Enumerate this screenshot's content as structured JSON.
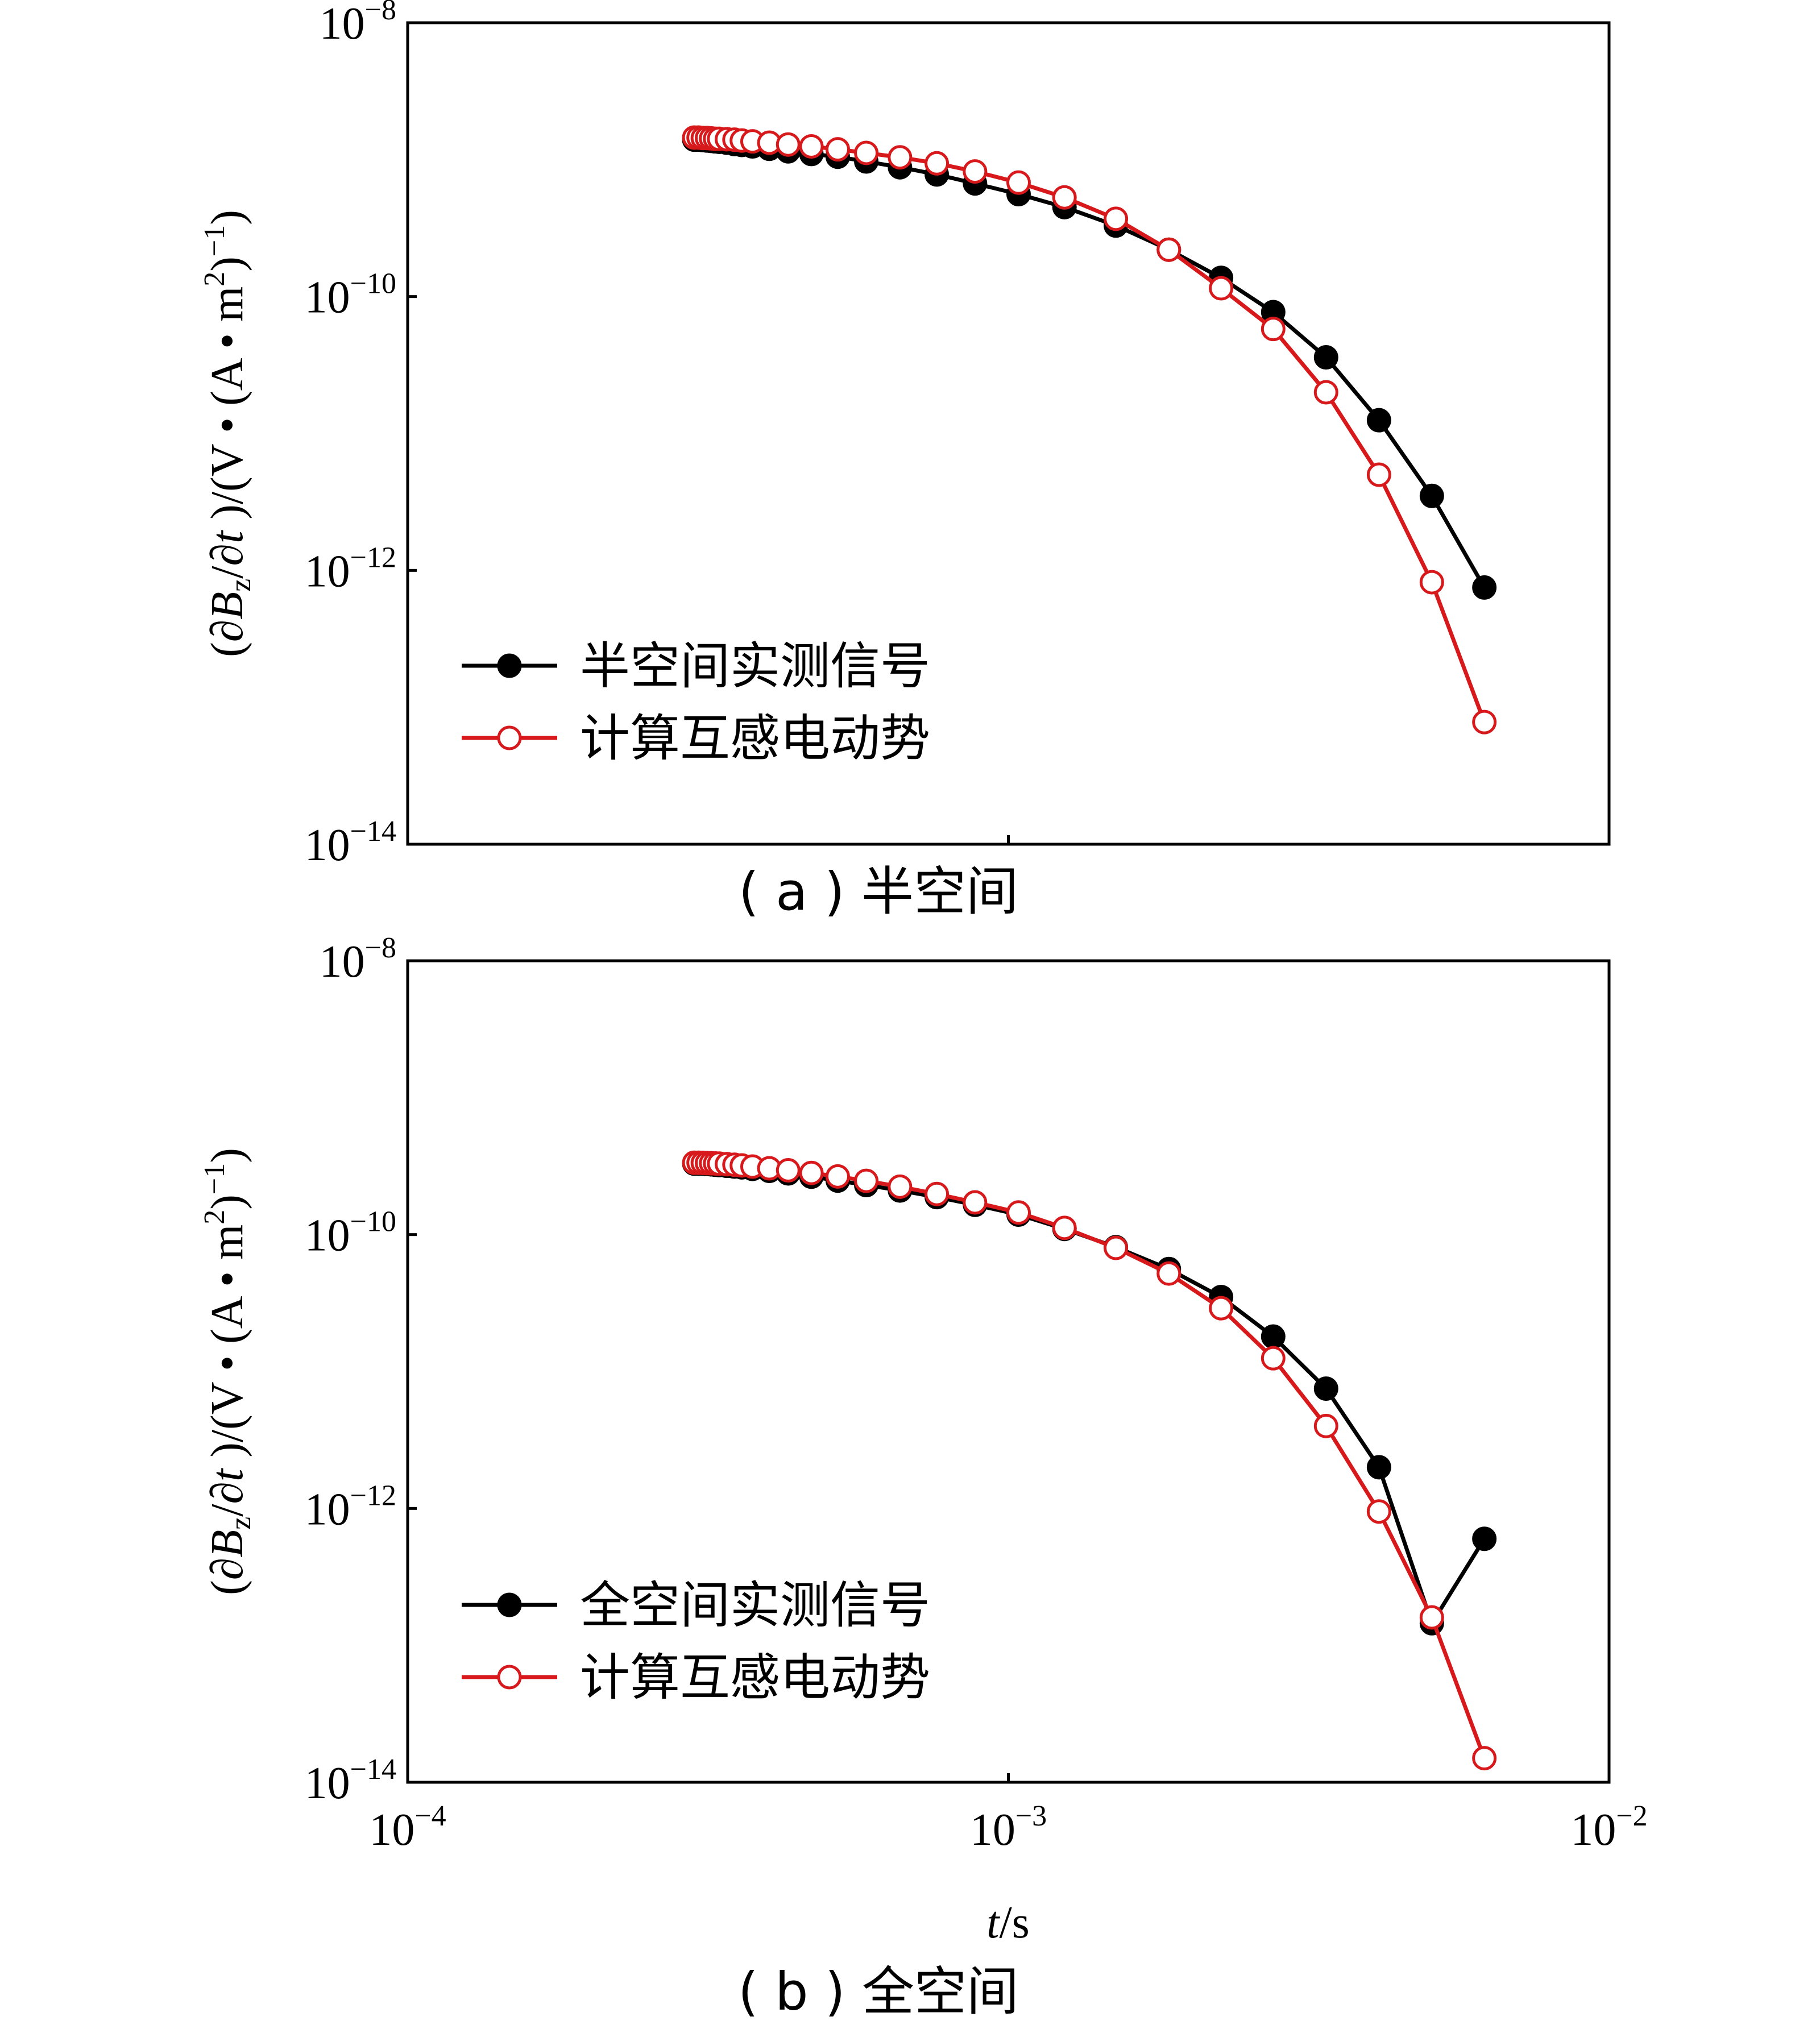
{
  "chart_data": [
    {
      "type": "line",
      "panel": "a",
      "caption": "( a ) 半空间",
      "xscale": "log",
      "yscale": "log",
      "xlim": [
        0.0001,
        0.01
      ],
      "ylim": [
        1e-14,
        1e-08
      ],
      "x_ticks": [
        {
          "base": "10",
          "exp": "−4"
        },
        {
          "base": "10",
          "exp": "−3"
        },
        {
          "base": "10",
          "exp": "−2"
        }
      ],
      "y_ticks": [
        {
          "base": "10",
          "exp": "−8"
        },
        {
          "base": "10",
          "exp": "−10"
        },
        {
          "base": "10",
          "exp": "−12"
        },
        {
          "base": "10",
          "exp": "−14"
        }
      ],
      "ylabel": "(∂Bz/∂t)/(V·(A·m²)⁻¹)",
      "legend_position": "lower-left",
      "series": [
        {
          "name": "半空间实测信号",
          "color": "#000000",
          "marker": "filled-circle",
          "x": [
            0.0003,
            0.000305,
            0.00031,
            0.000315,
            0.00032,
            0.000325,
            0.00033,
            0.00034,
            0.00035,
            0.00036,
            0.000375,
            0.0004,
            0.00043,
            0.00047,
            0.00052,
            0.00058,
            0.00066,
            0.00076,
            0.00088,
            0.00104,
            0.00124,
            0.00151,
            0.00185,
            0.00226,
            0.00276,
            0.00338,
            0.00414,
            0.00507,
            0.0062
          ],
          "y": [
            1.4e-09,
            1.4e-09,
            1.39e-09,
            1.38e-09,
            1.37e-09,
            1.36e-09,
            1.35e-09,
            1.33e-09,
            1.3e-09,
            1.28e-09,
            1.25e-09,
            1.2e-09,
            1.15e-09,
            1.1e-09,
            1.05e-09,
            9.7e-10,
            8.8e-10,
            7.8e-10,
            6.7e-10,
            5.6e-10,
            4.5e-10,
            3.3e-10,
            2.2e-10,
            1.37e-10,
            7.7e-11,
            3.6e-11,
            1.25e-11,
            3.5e-12,
            7.5e-13
          ]
        },
        {
          "name": "计算互感电动势",
          "color": "#d7191c",
          "marker": "open-circle",
          "x": [
            0.0003,
            0.000305,
            0.00031,
            0.000315,
            0.00032,
            0.000325,
            0.00033,
            0.00034,
            0.00035,
            0.00036,
            0.000375,
            0.0004,
            0.00043,
            0.00047,
            0.00052,
            0.00058,
            0.00066,
            0.00076,
            0.00088,
            0.00104,
            0.00124,
            0.00151,
            0.00185,
            0.00226,
            0.00276,
            0.00338,
            0.00414,
            0.00507,
            0.0062
          ],
          "y": [
            1.45e-09,
            1.45e-09,
            1.44e-09,
            1.44e-09,
            1.43e-09,
            1.42e-09,
            1.42e-09,
            1.41e-09,
            1.4e-09,
            1.38e-09,
            1.36e-09,
            1.33e-09,
            1.29e-09,
            1.25e-09,
            1.19e-09,
            1.12e-09,
            1.04e-09,
            9.4e-10,
            8.2e-10,
            6.8e-10,
            5.3e-10,
            3.7e-10,
            2.2e-10,
            1.15e-10,
            5.8e-11,
            2e-11,
            5e-12,
            8.2e-13,
            7.8e-14
          ]
        }
      ]
    },
    {
      "type": "line",
      "panel": "b",
      "caption": "( b ) 全空间",
      "xscale": "log",
      "yscale": "log",
      "xlim": [
        0.0001,
        0.01
      ],
      "ylim": [
        1e-14,
        1e-08
      ],
      "x_ticks": [
        {
          "base": "10",
          "exp": "−4"
        },
        {
          "base": "10",
          "exp": "−3"
        },
        {
          "base": "10",
          "exp": "−2"
        }
      ],
      "y_ticks": [
        {
          "base": "10",
          "exp": "−8"
        },
        {
          "base": "10",
          "exp": "−10"
        },
        {
          "base": "10",
          "exp": "−12"
        },
        {
          "base": "10",
          "exp": "−14"
        }
      ],
      "xlabel": "t/s",
      "ylabel": "(∂Bz/∂t)/(V·(A·m²)⁻¹)",
      "legend_position": "lower-left",
      "series": [
        {
          "name": "全空间实测信号",
          "color": "#000000",
          "marker": "filled-circle",
          "x": [
            0.0003,
            0.000305,
            0.00031,
            0.000315,
            0.00032,
            0.000325,
            0.00033,
            0.00034,
            0.00035,
            0.00036,
            0.000375,
            0.0004,
            0.00043,
            0.00047,
            0.00052,
            0.00058,
            0.00066,
            0.00076,
            0.00088,
            0.00104,
            0.00124,
            0.00151,
            0.00185,
            0.00226,
            0.00276,
            0.00338,
            0.00414,
            0.00507,
            0.0062
          ],
          "y": [
            3.3e-10,
            3.3e-10,
            3.3e-10,
            3.28e-10,
            3.26e-10,
            3.24e-10,
            3.22e-10,
            3.18e-10,
            3.14e-10,
            3.1e-10,
            3.02e-10,
            2.92e-10,
            2.8e-10,
            2.65e-10,
            2.48e-10,
            2.3e-10,
            2.1e-10,
            1.88e-10,
            1.65e-10,
            1.4e-10,
            1.1e-10,
            8.1e-11,
            5.6e-11,
            3.5e-11,
            1.8e-11,
            7.5e-12,
            2e-12,
            1.45e-13,
            6e-13
          ]
        },
        {
          "name": "计算互感电动势",
          "color": "#d7191c",
          "marker": "open-circle",
          "x": [
            0.0003,
            0.000305,
            0.00031,
            0.000315,
            0.00032,
            0.000325,
            0.00033,
            0.00034,
            0.00035,
            0.00036,
            0.000375,
            0.0004,
            0.00043,
            0.00047,
            0.00052,
            0.00058,
            0.00066,
            0.00076,
            0.00088,
            0.00104,
            0.00124,
            0.00151,
            0.00185,
            0.00226,
            0.00276,
            0.00338,
            0.00414,
            0.00507,
            0.0062
          ],
          "y": [
            3.35e-10,
            3.35e-10,
            3.34e-10,
            3.33e-10,
            3.32e-10,
            3.31e-10,
            3.3e-10,
            3.27e-10,
            3.24e-10,
            3.2e-10,
            3.14e-10,
            3.05e-10,
            2.95e-10,
            2.82e-10,
            2.66e-10,
            2.47e-10,
            2.24e-10,
            1.98e-10,
            1.72e-10,
            1.45e-10,
            1.12e-10,
            8e-11,
            5.2e-11,
            2.9e-11,
            1.25e-11,
            4e-12,
            9.5e-13,
            1.6e-13,
            1.5e-14
          ]
        }
      ]
    }
  ],
  "ylabel_parts": {
    "open": "(∂",
    "B": "B",
    "z": "z",
    "mid": "/∂",
    "t": "t",
    "close": " )/(V • (A • m",
    "sq": "2",
    "end": ")",
    "inv": "−1",
    "end2": ")"
  },
  "xlabel_parts": {
    "t": "t",
    "unit": "/s"
  }
}
